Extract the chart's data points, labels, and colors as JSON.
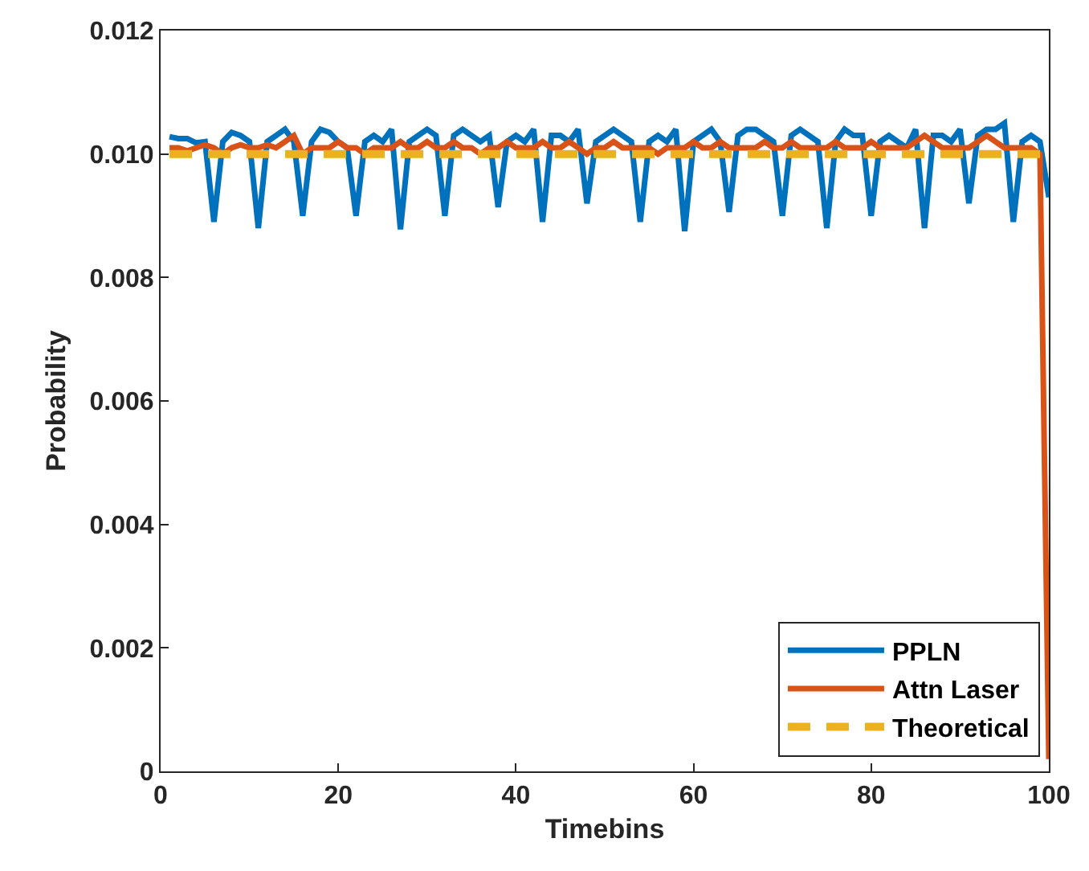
{
  "chart_data": {
    "type": "line",
    "xlabel": "Timebins",
    "ylabel": "Probability",
    "xlim": [
      0,
      100
    ],
    "xticks": [
      0,
      20,
      40,
      60,
      80,
      100
    ],
    "ylim": [
      0,
      0.012
    ],
    "yticks": [
      {
        "value": 0,
        "label": "0"
      },
      {
        "value": 0.002,
        "label": "0.002"
      },
      {
        "value": 0.004,
        "label": "0.004"
      },
      {
        "value": 0.006,
        "label": "0.006"
      },
      {
        "value": 0.008,
        "label": "0.008"
      },
      {
        "value": 0.01,
        "label": "0.010"
      },
      {
        "value": 0.012,
        "label": "0.012"
      }
    ],
    "grid": false,
    "legend": "bottom right",
    "marker": "none",
    "x": [
      1,
      2,
      3,
      4,
      5,
      6,
      7,
      8,
      9,
      10,
      11,
      12,
      13,
      14,
      15,
      16,
      17,
      18,
      19,
      20,
      21,
      22,
      23,
      24,
      25,
      26,
      27,
      28,
      29,
      30,
      31,
      32,
      33,
      34,
      35,
      36,
      37,
      38,
      39,
      40,
      41,
      42,
      43,
      44,
      45,
      46,
      47,
      48,
      49,
      50,
      51,
      52,
      53,
      54,
      55,
      56,
      57,
      58,
      59,
      60,
      61,
      62,
      63,
      64,
      65,
      66,
      67,
      68,
      69,
      70,
      71,
      72,
      73,
      74,
      75,
      76,
      77,
      78,
      79,
      80,
      81,
      82,
      83,
      84,
      85,
      86,
      87,
      88,
      89,
      90,
      91,
      92,
      93,
      94,
      95,
      96,
      97,
      98,
      99,
      100
    ],
    "series": [
      {
        "name": "PPLN",
        "color": "#0072bd",
        "line_style": "solid",
        "values": [
          0.01028,
          0.01025,
          0.01025,
          0.01018,
          0.0102,
          0.0089,
          0.0102,
          0.01035,
          0.0103,
          0.0102,
          0.0088,
          0.0102,
          0.0103,
          0.0104,
          0.0102,
          0.009,
          0.0102,
          0.0104,
          0.01035,
          0.0102,
          0.0101,
          0.009,
          0.0102,
          0.0103,
          0.0102,
          0.0104,
          0.00878,
          0.0102,
          0.0103,
          0.0104,
          0.0103,
          0.009,
          0.0103,
          0.0104,
          0.0103,
          0.0102,
          0.0103,
          0.00914,
          0.0102,
          0.0103,
          0.0102,
          0.0104,
          0.0089,
          0.0103,
          0.0103,
          0.0102,
          0.0104,
          0.0092,
          0.0102,
          0.0103,
          0.0104,
          0.0103,
          0.0102,
          0.0089,
          0.0102,
          0.0103,
          0.0102,
          0.0104,
          0.00875,
          0.0102,
          0.0103,
          0.0104,
          0.0102,
          0.00906,
          0.0103,
          0.0104,
          0.0104,
          0.0103,
          0.0102,
          0.009,
          0.0103,
          0.0104,
          0.0103,
          0.0102,
          0.0088,
          0.0102,
          0.0104,
          0.0103,
          0.0103,
          0.009,
          0.0102,
          0.0103,
          0.0102,
          0.0101,
          0.0104,
          0.0088,
          0.0103,
          0.0103,
          0.0102,
          0.0104,
          0.0092,
          0.0103,
          0.0104,
          0.0104,
          0.0105,
          0.0089,
          0.0102,
          0.0103,
          0.0102,
          0.0093
        ]
      },
      {
        "name": "Attn Laser",
        "color": "#d95319",
        "line_style": "solid",
        "values": [
          0.0101,
          0.0101,
          0.01005,
          0.0101,
          0.01015,
          0.0101,
          0.01,
          0.0101,
          0.01015,
          0.0101,
          0.0101,
          0.01015,
          0.0101,
          0.0102,
          0.0103,
          0.01,
          0.0101,
          0.0101,
          0.0101,
          0.0102,
          0.0101,
          0.0101,
          0.01,
          0.0101,
          0.0101,
          0.0101,
          0.0102,
          0.0101,
          0.0101,
          0.0102,
          0.0101,
          0.0101,
          0.0102,
          0.0101,
          0.0101,
          0.01,
          0.0101,
          0.0101,
          0.0102,
          0.0101,
          0.0101,
          0.0101,
          0.0102,
          0.0101,
          0.0101,
          0.0102,
          0.0101,
          0.01,
          0.0101,
          0.0101,
          0.0102,
          0.0101,
          0.0101,
          0.0101,
          0.0101,
          0.01,
          0.0101,
          0.0101,
          0.0101,
          0.0102,
          0.0101,
          0.0101,
          0.0102,
          0.0101,
          0.0101,
          0.0101,
          0.0101,
          0.0102,
          0.0101,
          0.0101,
          0.0102,
          0.0101,
          0.0101,
          0.0101,
          0.0101,
          0.0102,
          0.0101,
          0.0101,
          0.0101,
          0.0102,
          0.0101,
          0.0101,
          0.0101,
          0.0101,
          0.0102,
          0.0103,
          0.0102,
          0.0101,
          0.0101,
          0.0101,
          0.0101,
          0.0102,
          0.0103,
          0.0102,
          0.0101,
          0.0101,
          0.0101,
          0.0101,
          0.01,
          0.0002
        ]
      },
      {
        "name": "Theoretical",
        "color": "#edb120",
        "line_style": "dashed",
        "values": [
          0.01,
          0.01,
          0.01,
          0.01,
          0.01,
          0.01,
          0.01,
          0.01,
          0.01,
          0.01,
          0.01,
          0.01,
          0.01,
          0.01,
          0.01,
          0.01,
          0.01,
          0.01,
          0.01,
          0.01,
          0.01,
          0.01,
          0.01,
          0.01,
          0.01,
          0.01,
          0.01,
          0.01,
          0.01,
          0.01,
          0.01,
          0.01,
          0.01,
          0.01,
          0.01,
          0.01,
          0.01,
          0.01,
          0.01,
          0.01,
          0.01,
          0.01,
          0.01,
          0.01,
          0.01,
          0.01,
          0.01,
          0.01,
          0.01,
          0.01,
          0.01,
          0.01,
          0.01,
          0.01,
          0.01,
          0.01,
          0.01,
          0.01,
          0.01,
          0.01,
          0.01,
          0.01,
          0.01,
          0.01,
          0.01,
          0.01,
          0.01,
          0.01,
          0.01,
          0.01,
          0.01,
          0.01,
          0.01,
          0.01,
          0.01,
          0.01,
          0.01,
          0.01,
          0.01,
          0.01,
          0.01,
          0.01,
          0.01,
          0.01,
          0.01,
          0.01,
          0.01,
          0.01,
          0.01,
          0.01,
          0.01,
          0.01,
          0.01,
          0.01,
          0.01,
          0.01,
          0.01,
          0.01,
          0.01,
          0.01
        ]
      }
    ]
  }
}
